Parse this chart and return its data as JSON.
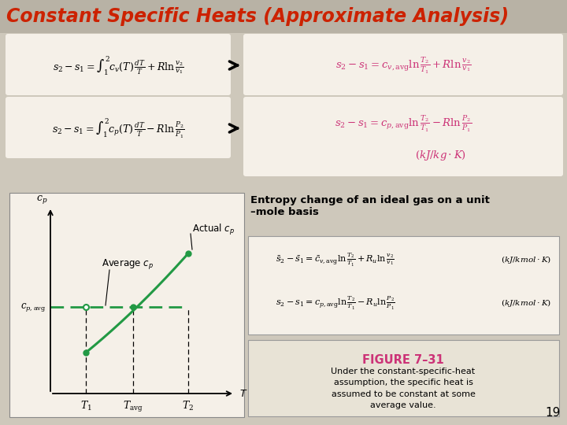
{
  "bg_color": "#cec8bb",
  "title": "Constant Specific Heats (Approximate Analysis)",
  "title_color": "#cc2200",
  "title_fontsize": 17,
  "page_number": "19",
  "white_box_color": "#f5f0e8",
  "cream_box_color": "#e8e3d6",
  "pink_color": "#cc3377",
  "graph_bg": "#f0ede6",
  "entropy_header": "Entropy change of an ideal gas on a unit\n–mole basis",
  "figure_label": "FIGURE 7–31",
  "figure_caption": "Under the constant-specific-heat\nassumption, the specific heat is\nassumed to be constant at some\naverage value."
}
